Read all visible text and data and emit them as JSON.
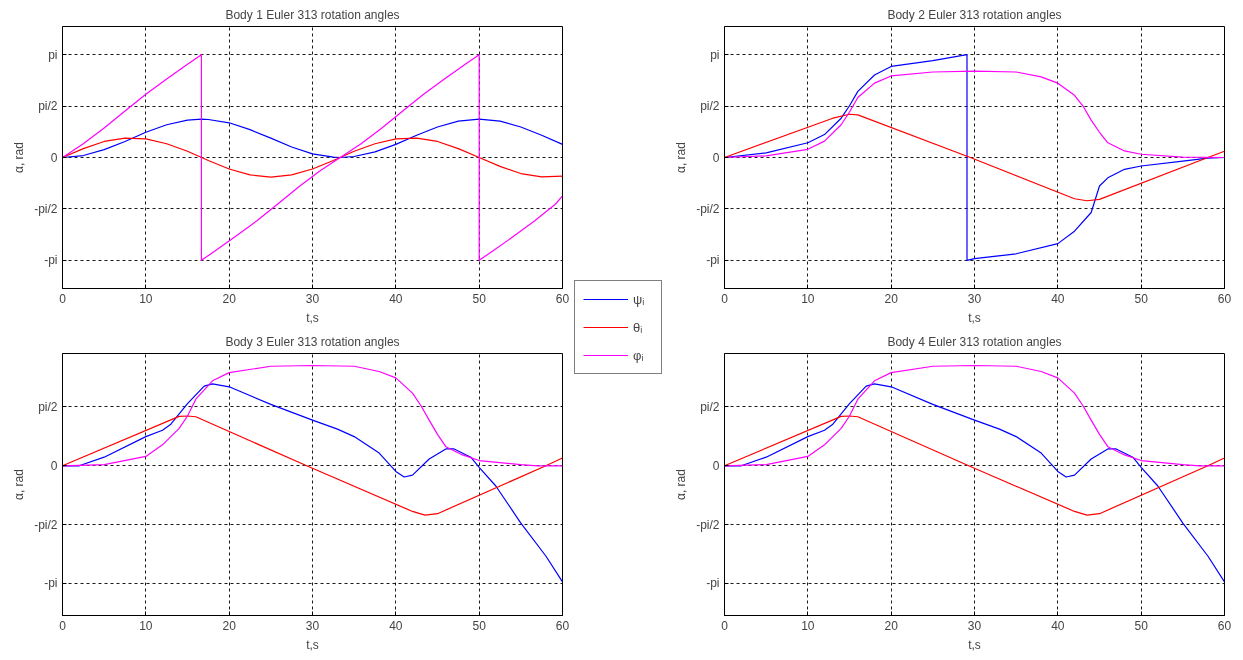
{
  "chart_data": [
    {
      "type": "line",
      "title": "Body 1 Euler 313 rotation angles",
      "xlabel": "t,s",
      "ylabel": "α, rad",
      "xlim": [
        0,
        60
      ],
      "xticks": [
        0,
        10,
        20,
        30,
        40,
        50,
        60
      ],
      "ylim": [
        -4,
        4
      ],
      "yticks": [
        {
          "value": -3.1416,
          "label": "-pi"
        },
        {
          "value": -1.5708,
          "label": "-pi/2"
        },
        0,
        {
          "value": 1.5708,
          "label": "pi/2"
        },
        {
          "value": 3.1416,
          "label": "pi"
        }
      ],
      "grid": true,
      "legend": "right",
      "series": [
        {
          "name": "ψᵢ",
          "color": "#0000ff",
          "x": [
            0,
            2.5,
            5,
            7.5,
            10,
            12.5,
            15,
            16.67,
            17.5,
            20,
            22.5,
            25,
            27.5,
            30,
            32.5,
            33.33,
            35,
            37.5,
            40,
            42.5,
            45,
            47.5,
            50,
            52.5,
            55,
            57.5,
            60
          ],
          "values": [
            0,
            0.06,
            0.24,
            0.49,
            0.77,
            1.0,
            1.14,
            1.17,
            1.16,
            1.06,
            0.85,
            0.59,
            0.32,
            0.11,
            0.01,
            0,
            0.03,
            0.17,
            0.4,
            0.68,
            0.93,
            1.11,
            1.17,
            1.11,
            0.93,
            0.68,
            0.4
          ]
        },
        {
          "name": "θᵢ",
          "color": "#ff0000",
          "x": [
            0,
            2.5,
            5,
            7.5,
            10,
            12.5,
            15,
            17.5,
            20,
            22.5,
            25,
            27.5,
            30,
            32.5,
            35,
            37.5,
            40,
            42.5,
            45,
            47.5,
            50,
            52.5,
            55,
            57.5,
            60
          ],
          "values": [
            0,
            0.27,
            0.49,
            0.59,
            0.57,
            0.42,
            0.19,
            -0.09,
            -0.35,
            -0.53,
            -0.6,
            -0.53,
            -0.35,
            -0.09,
            0.19,
            0.42,
            0.57,
            0.59,
            0.49,
            0.27,
            0,
            -0.27,
            -0.49,
            -0.59,
            -0.57
          ]
        },
        {
          "name": "φᵢ",
          "color": "#ff00ff",
          "x": [
            0,
            2.5,
            5,
            7.5,
            10,
            12.5,
            15,
            16.67,
            16.67,
            18.33,
            20.83,
            23.33,
            25.83,
            28.33,
            30.83,
            33.33,
            35.83,
            38.33,
            40.83,
            43.33,
            45.83,
            48.33,
            50,
            50,
            51.67,
            54.17,
            56.67,
            59.17,
            60
          ],
          "values": [
            0,
            0.42,
            0.9,
            1.42,
            1.93,
            2.4,
            2.85,
            3.14,
            -3.14,
            -2.85,
            -2.4,
            -1.93,
            -1.42,
            -0.9,
            -0.42,
            0,
            0.42,
            0.9,
            1.42,
            1.93,
            2.4,
            2.85,
            3.14,
            -3.14,
            -2.85,
            -2.4,
            -1.93,
            -1.42,
            -1.17
          ]
        }
      ]
    },
    {
      "type": "line",
      "title": "Body 2 Euler 313 rotation angles",
      "xlabel": "t,s",
      "ylabel": "α, rad",
      "xlim": [
        0,
        60
      ],
      "xticks": [
        0,
        10,
        20,
        30,
        40,
        50,
        60
      ],
      "ylim": [
        -4,
        4
      ],
      "yticks": [
        {
          "value": -3.1416,
          "label": "-pi"
        },
        {
          "value": -1.5708,
          "label": "-pi/2"
        },
        0,
        {
          "value": 1.5708,
          "label": "pi/2"
        },
        {
          "value": 3.1416,
          "label": "pi"
        }
      ],
      "grid": true,
      "legend": false,
      "series": [
        {
          "color": "#0000ff",
          "x": [
            0,
            5,
            10,
            12,
            14,
            15,
            16,
            18,
            20,
            25,
            29.1,
            29.1,
            30,
            35,
            40,
            42,
            44,
            45,
            46,
            48,
            50,
            55,
            58,
            60
          ],
          "values": [
            0,
            0.14,
            0.45,
            0.7,
            1.2,
            1.58,
            2.02,
            2.52,
            2.78,
            2.96,
            3.14,
            -3.14,
            -3.09,
            -2.94,
            -2.63,
            -2.25,
            -1.68,
            -0.87,
            -0.62,
            -0.36,
            -0.26,
            -0.11,
            -0.02,
            0
          ]
        },
        {
          "color": "#ff0000",
          "x": [
            0,
            13,
            15,
            16,
            29.5,
            42,
            43.5,
            45,
            58,
            60
          ],
          "values": [
            0,
            1.2,
            1.32,
            1.3,
            0,
            -1.26,
            -1.32,
            -1.28,
            0,
            0.19
          ]
        },
        {
          "color": "#ff00ff",
          "x": [
            0,
            5,
            10,
            12,
            14,
            15,
            16,
            18,
            20,
            25,
            30,
            35,
            38,
            40,
            42,
            43,
            44,
            45,
            46,
            48,
            50,
            55,
            60
          ],
          "values": [
            0,
            0.05,
            0.25,
            0.5,
            1.0,
            1.39,
            1.83,
            2.27,
            2.49,
            2.61,
            2.64,
            2.61,
            2.46,
            2.27,
            1.9,
            1.58,
            1.14,
            0.77,
            0.45,
            0.2,
            0.1,
            0.01,
            0
          ]
        }
      ]
    },
    {
      "type": "line",
      "title": "Body 3 Euler 313 rotation angles",
      "xlabel": "t,s",
      "ylabel": "α, rad",
      "xlim": [
        0,
        60
      ],
      "xticks": [
        0,
        10,
        20,
        30,
        40,
        50,
        60
      ],
      "ylim": [
        -4,
        3
      ],
      "yticks": [
        {
          "value": -3.1416,
          "label": "-pi"
        },
        {
          "value": -1.5708,
          "label": "-pi/2"
        },
        0,
        {
          "value": 1.5708,
          "label": "pi/2"
        }
      ],
      "grid": true,
      "legend": false,
      "series": [
        {
          "color": "#0000ff",
          "x": [
            0,
            2,
            5,
            10,
            12,
            13,
            15,
            17,
            18,
            20,
            25,
            30,
            33,
            35,
            38,
            40,
            41,
            42,
            44,
            46,
            47,
            49,
            50,
            52,
            55,
            58,
            60
          ],
          "values": [
            0,
            0,
            0.23,
            0.78,
            0.95,
            1.11,
            1.66,
            2.13,
            2.19,
            2.11,
            1.64,
            1.22,
            0.98,
            0.78,
            0.34,
            -0.15,
            -0.3,
            -0.25,
            0.18,
            0.45,
            0.45,
            0.23,
            -0.04,
            -0.54,
            -1.53,
            -2.41,
            -3.1
          ]
        },
        {
          "color": "#ff0000",
          "x": [
            0,
            14,
            15,
            16,
            29.3,
            42,
            43.5,
            45,
            58,
            60
          ],
          "values": [
            0,
            1.32,
            1.33,
            1.31,
            0,
            -1.22,
            -1.32,
            -1.28,
            0,
            0.21
          ]
        },
        {
          "color": "#ff00ff",
          "x": [
            0,
            5,
            10,
            12,
            14,
            15,
            16,
            18,
            20,
            25,
            30,
            35,
            38,
            40,
            42,
            43,
            44,
            45,
            46,
            48,
            50,
            55,
            57,
            60
          ],
          "values": [
            0,
            0.03,
            0.25,
            0.56,
            1.0,
            1.33,
            1.78,
            2.27,
            2.49,
            2.66,
            2.68,
            2.66,
            2.52,
            2.35,
            1.94,
            1.61,
            1.22,
            0.84,
            0.51,
            0.29,
            0.14,
            0.03,
            0,
            0
          ]
        }
      ]
    },
    {
      "type": "line",
      "title": "Body 4 Euler 313 rotation angles",
      "xlabel": "t,s",
      "ylabel": "α, rad",
      "xlim": [
        0,
        60
      ],
      "xticks": [
        0,
        10,
        20,
        30,
        40,
        50,
        60
      ],
      "ylim": [
        -4,
        3
      ],
      "yticks": [
        {
          "value": -3.1416,
          "label": "-pi"
        },
        {
          "value": -1.5708,
          "label": "-pi/2"
        },
        0,
        {
          "value": 1.5708,
          "label": "pi/2"
        }
      ],
      "grid": true,
      "legend": false,
      "series": [
        {
          "color": "#0000ff",
          "x": [
            0,
            2,
            5,
            10,
            12,
            13,
            15,
            17,
            18,
            20,
            25,
            30,
            33,
            35,
            38,
            40,
            41,
            42,
            44,
            46,
            47,
            49,
            50,
            52,
            55,
            58,
            60
          ],
          "values": [
            0,
            0,
            0.23,
            0.78,
            0.95,
            1.11,
            1.66,
            2.13,
            2.19,
            2.11,
            1.64,
            1.22,
            0.98,
            0.78,
            0.34,
            -0.15,
            -0.3,
            -0.25,
            0.18,
            0.45,
            0.45,
            0.23,
            -0.04,
            -0.54,
            -1.53,
            -2.41,
            -3.1
          ]
        },
        {
          "color": "#ff0000",
          "x": [
            0,
            14,
            15,
            16,
            29.3,
            42,
            43.5,
            45,
            58,
            60
          ],
          "values": [
            0,
            1.32,
            1.33,
            1.31,
            0,
            -1.22,
            -1.32,
            -1.28,
            0,
            0.21
          ]
        },
        {
          "color": "#ff00ff",
          "x": [
            0,
            5,
            10,
            12,
            14,
            15,
            16,
            18,
            20,
            25,
            30,
            35,
            38,
            40,
            42,
            43,
            44,
            45,
            46,
            48,
            50,
            55,
            57,
            60
          ],
          "values": [
            0,
            0.03,
            0.25,
            0.56,
            1.0,
            1.33,
            1.78,
            2.27,
            2.49,
            2.66,
            2.68,
            2.66,
            2.52,
            2.35,
            1.94,
            1.61,
            1.22,
            0.84,
            0.51,
            0.29,
            0.14,
            0.03,
            0,
            0
          ]
        }
      ]
    }
  ]
}
